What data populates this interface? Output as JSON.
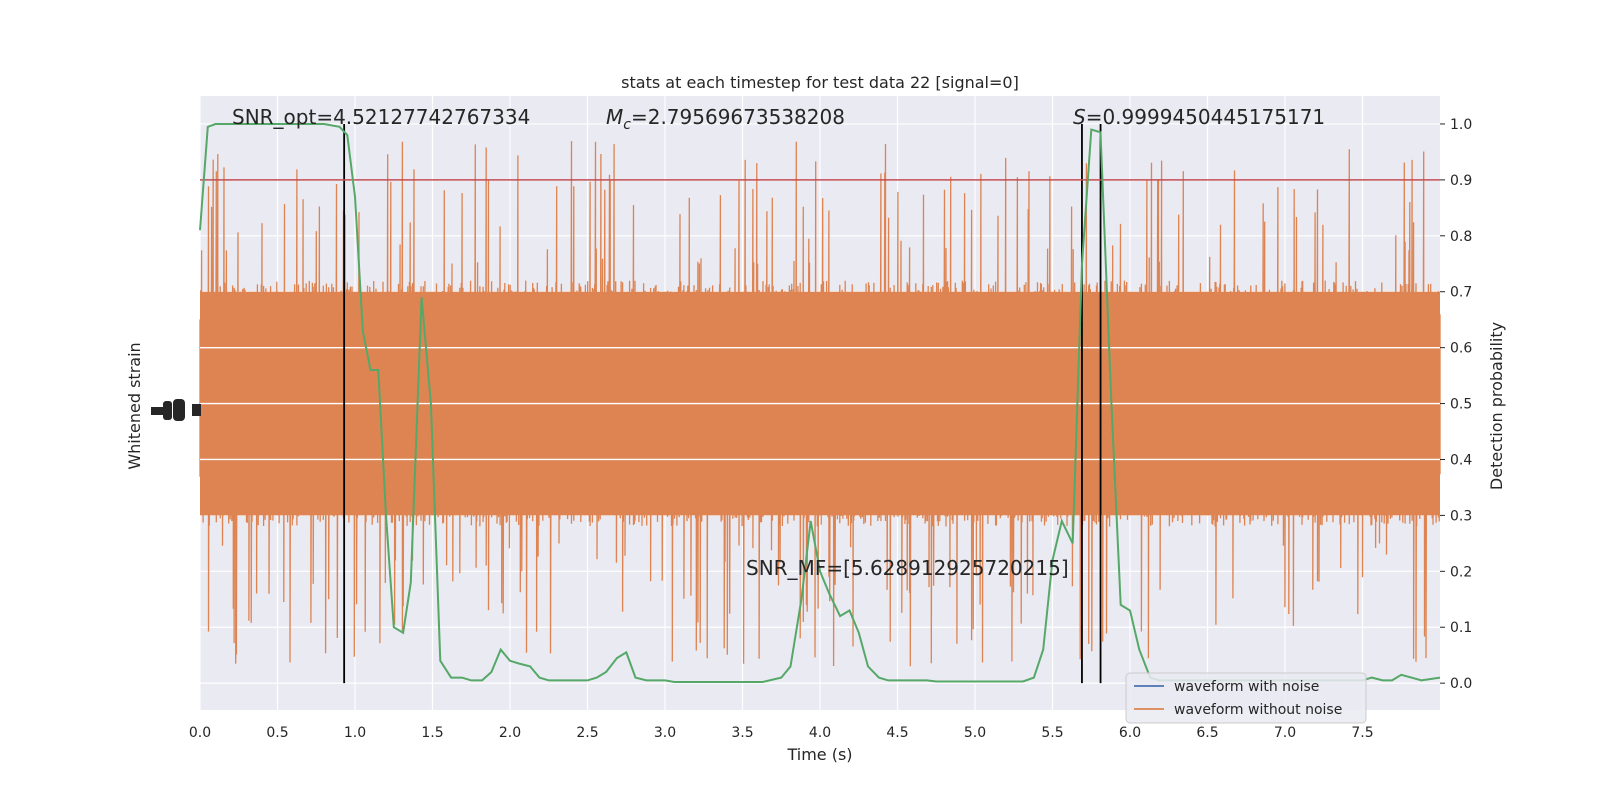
{
  "chart_data": {
    "type": "line",
    "title": "stats at each timestep for test data 22 [signal=0]",
    "xlabel": "Time (s)",
    "ylabel_left": "Whitened strain",
    "ylabel_right": "Detection probability",
    "xlim": [
      0.0,
      8.0
    ],
    "ylim_right": [
      -0.048,
      1.05
    ],
    "x_ticks": [
      "0.0",
      "0.5",
      "1.0",
      "1.5",
      "2.0",
      "2.5",
      "3.0",
      "3.5",
      "4.0",
      "4.5",
      "5.0",
      "5.5",
      "6.0",
      "6.5",
      "7.0",
      "7.5"
    ],
    "x_tick_values": [
      0.0,
      0.5,
      1.0,
      1.5,
      2.0,
      2.5,
      3.0,
      3.5,
      4.0,
      4.5,
      5.0,
      5.5,
      6.0,
      6.5,
      7.0,
      7.5
    ],
    "y_right_ticks": [
      "0.0",
      "0.1",
      "0.2",
      "0.3",
      "0.4",
      "0.5",
      "0.6",
      "0.7",
      "0.8",
      "0.9",
      "1.0"
    ],
    "y_right_tick_values": [
      0.0,
      0.1,
      0.2,
      0.3,
      0.4,
      0.5,
      0.6,
      0.7,
      0.8,
      0.9,
      1.0
    ],
    "annotations": {
      "snr_opt": "SNR_opt=4.52127742767334",
      "mc_symbol": "M",
      "mc_sub": "c",
      "mc_value": "=2.79569673538208",
      "s_symbol": "S",
      "s_value": "=0.9999450445175171",
      "snr_mf": "SNR_MF=[5.628912925720215]"
    },
    "threshold": {
      "value": 0.9,
      "color": "#c44e52"
    },
    "vertical_lines": [
      0.93,
      5.69,
      5.81
    ],
    "legend": {
      "placement": "lower-right",
      "entries": [
        {
          "label": "waveform with noise",
          "color": "#4c72b0"
        },
        {
          "label": "waveform without noise",
          "color": "#dd8452"
        }
      ]
    },
    "noise_band": {
      "color": "#dd8452",
      "dense_low": 0.3,
      "dense_high": 0.7,
      "spike_min": 0.0,
      "spike_max": 0.98
    },
    "series": [
      {
        "color": "#55a868",
        "x": [
          0.0,
          0.05,
          0.1,
          0.2,
          0.3,
          0.4,
          0.5,
          0.6,
          0.7,
          0.8,
          0.9,
          0.95,
          1.0,
          1.05,
          1.1,
          1.15,
          1.2,
          1.25,
          1.31,
          1.36,
          1.43,
          1.49,
          1.55,
          1.62,
          1.69,
          1.75,
          1.82,
          1.88,
          1.94,
          2.0,
          2.06,
          2.13,
          2.19,
          2.25,
          2.38,
          2.5,
          2.56,
          2.62,
          2.69,
          2.75,
          2.81,
          2.88,
          2.94,
          3.0,
          3.06,
          3.13,
          3.19,
          3.25,
          3.38,
          3.5,
          3.63,
          3.75,
          3.81,
          3.88,
          3.94,
          4.0,
          4.06,
          4.13,
          4.19,
          4.25,
          4.31,
          4.38,
          4.44,
          4.5,
          4.56,
          4.63,
          4.69,
          4.75,
          4.81,
          4.88,
          5.0,
          5.13,
          5.25,
          5.31,
          5.38,
          5.44,
          5.5,
          5.56,
          5.63,
          5.69,
          5.75,
          5.81,
          5.88,
          5.94,
          6.0,
          6.06,
          6.13,
          6.19,
          6.25,
          6.38,
          6.5,
          6.63,
          6.75,
          6.88,
          7.0,
          7.13,
          7.25,
          7.38,
          7.5,
          7.56,
          7.63,
          7.69,
          7.75,
          7.88,
          8.0
        ],
        "y": [
          0.81,
          0.995,
          1.0,
          1.0,
          1.0,
          1.0,
          1.0,
          1.0,
          1.0,
          1.0,
          0.995,
          0.98,
          0.87,
          0.63,
          0.56,
          0.56,
          0.3,
          0.1,
          0.09,
          0.18,
          0.69,
          0.5,
          0.04,
          0.01,
          0.01,
          0.005,
          0.005,
          0.02,
          0.06,
          0.04,
          0.035,
          0.03,
          0.01,
          0.005,
          0.005,
          0.005,
          0.01,
          0.02,
          0.045,
          0.055,
          0.01,
          0.005,
          0.005,
          0.005,
          0.002,
          0.002,
          0.002,
          0.002,
          0.002,
          0.002,
          0.002,
          0.01,
          0.03,
          0.15,
          0.29,
          0.2,
          0.16,
          0.12,
          0.13,
          0.09,
          0.03,
          0.01,
          0.005,
          0.005,
          0.005,
          0.005,
          0.005,
          0.003,
          0.003,
          0.003,
          0.003,
          0.003,
          0.003,
          0.003,
          0.01,
          0.06,
          0.22,
          0.29,
          0.25,
          0.75,
          0.99,
          0.985,
          0.5,
          0.14,
          0.13,
          0.06,
          0.01,
          0.005,
          0.005,
          0.005,
          0.005,
          0.005,
          0.005,
          0.005,
          0.005,
          0.005,
          0.005,
          0.005,
          0.005,
          0.01,
          0.005,
          0.005,
          0.015,
          0.005,
          0.01
        ]
      }
    ]
  }
}
